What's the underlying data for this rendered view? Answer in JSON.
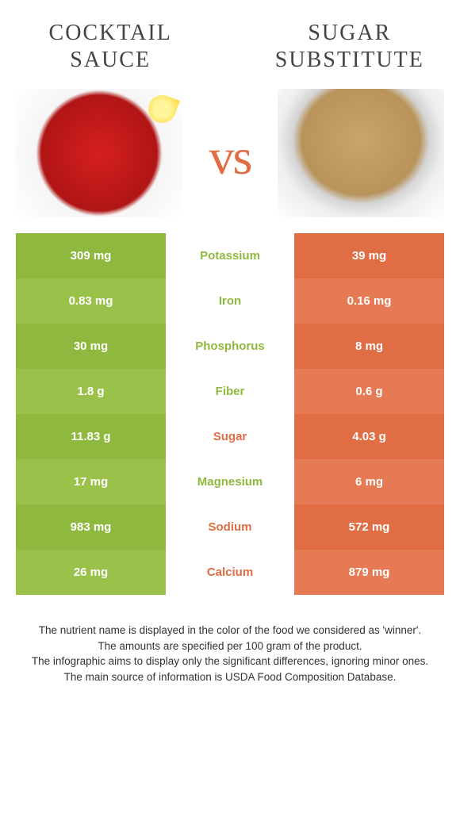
{
  "titles": {
    "left": "Cocktail sauce",
    "right": "Sugar substitute",
    "vs": "vs"
  },
  "colors": {
    "left_bar": "#8fb93e",
    "left_bar_alt": "#9ac24a",
    "right_bar": "#e06d44",
    "right_bar_alt": "#e57a54",
    "mid_green": "#8fb93e",
    "mid_orange": "#e06d44"
  },
  "rows": [
    {
      "left": "309 mg",
      "label": "Potassium",
      "right": "39 mg",
      "winner": "left"
    },
    {
      "left": "0.83 mg",
      "label": "Iron",
      "right": "0.16 mg",
      "winner": "left"
    },
    {
      "left": "30 mg",
      "label": "Phosphorus",
      "right": "8 mg",
      "winner": "left"
    },
    {
      "left": "1.8 g",
      "label": "Fiber",
      "right": "0.6 g",
      "winner": "left"
    },
    {
      "left": "11.83 g",
      "label": "Sugar",
      "right": "4.03 g",
      "winner": "right"
    },
    {
      "left": "17 mg",
      "label": "Magnesium",
      "right": "6 mg",
      "winner": "left"
    },
    {
      "left": "983 mg",
      "label": "Sodium",
      "right": "572 mg",
      "winner": "right"
    },
    {
      "left": "26 mg",
      "label": "Calcium",
      "right": "879 mg",
      "winner": "right"
    }
  ],
  "footer": [
    "The nutrient name is displayed in the color of the food we considered as 'winner'.",
    "The amounts are specified per 100 gram of the product.",
    "The infographic aims to display only the significant differences, ignoring minor ones.",
    "The main source of information is USDA Food Composition Database."
  ]
}
